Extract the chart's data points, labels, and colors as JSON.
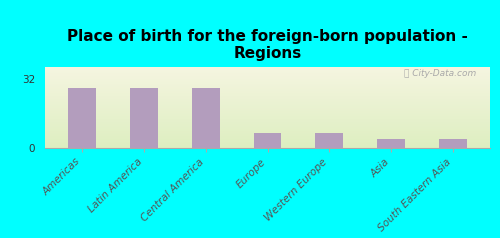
{
  "title": "Place of birth for the foreign-born population -\nRegions",
  "categories": [
    "Americas",
    "Latin America",
    "Central America",
    "Europe",
    "Western Europe",
    "Asia",
    "South Eastern Asia"
  ],
  "values": [
    28,
    28,
    28,
    7,
    7,
    4,
    4
  ],
  "bar_color": "#b39dbd",
  "background_color": "#00ffff",
  "plot_bg_color": "#eef2e0",
  "yticks": [
    0,
    32
  ],
  "ylim": [
    0,
    38
  ],
  "watermark": "ⓒ City-Data.com",
  "title_fontsize": 11,
  "tick_label_fontsize": 7.5
}
